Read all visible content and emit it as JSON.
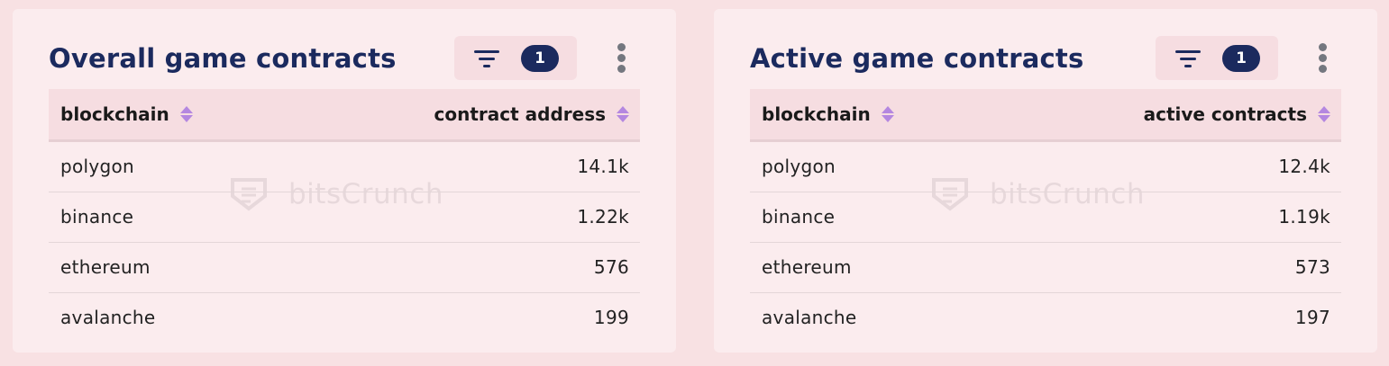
{
  "cards": [
    {
      "title": "Overall game contracts",
      "filter_count": "1",
      "columns": [
        "blockchain",
        "contract address"
      ],
      "rows": [
        [
          "polygon",
          "14.1k"
        ],
        [
          "binance",
          "1.22k"
        ],
        [
          "ethereum",
          "576"
        ],
        [
          "avalanche",
          "199"
        ]
      ],
      "watermark": "bitsCrunch"
    },
    {
      "title": "Active game contracts",
      "filter_count": "1",
      "columns": [
        "blockchain",
        "active contracts"
      ],
      "rows": [
        [
          "polygon",
          "12.4k"
        ],
        [
          "binance",
          "1.19k"
        ],
        [
          "ethereum",
          "573"
        ],
        [
          "avalanche",
          "197"
        ]
      ],
      "watermark": "bitsCrunch"
    }
  ],
  "icons": {
    "filter": "filter-icon",
    "more": "kebab-menu-icon",
    "sort": "sort-icon",
    "logo": "bitscrunch-logo"
  },
  "colors": {
    "page_background": "#f8e1e3",
    "card_background": "#fbecee",
    "title": "#1b2a5e",
    "badge": "#1b2a5e",
    "sort_accent": "#b487e0"
  }
}
